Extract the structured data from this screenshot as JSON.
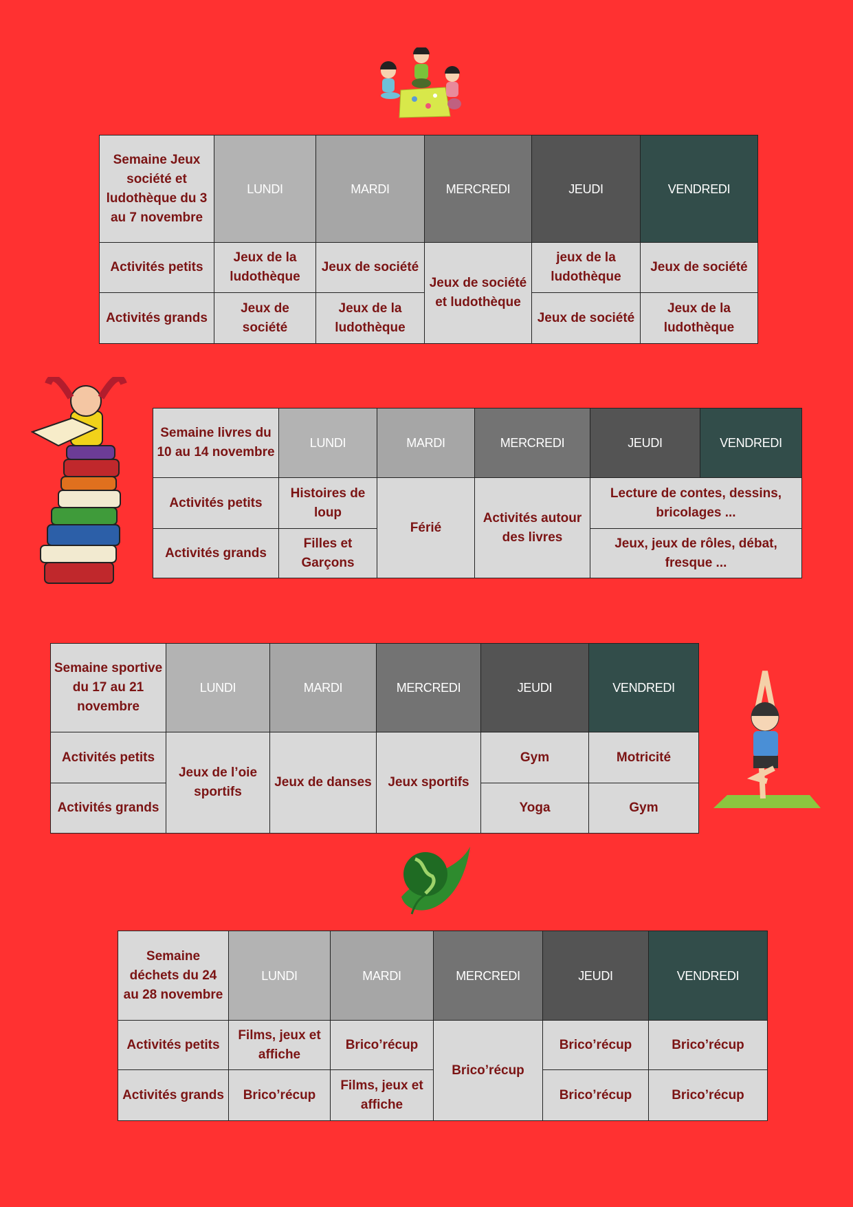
{
  "colors": {
    "background": "#ff3131",
    "cell": "#d9d9d9",
    "text": "#7b1414",
    "day_headers": [
      "#b3b3b3",
      "#a6a6a6",
      "#737373",
      "#545454",
      "#324d4a"
    ]
  },
  "days": [
    "LUNDI",
    "MARDI",
    "MERCREDI",
    "JEUDI",
    "VENDREDI"
  ],
  "tables": [
    {
      "title": "Semaine Jeux société et ludothèque du 3 au 7 novembre",
      "rows": [
        {
          "label": "Activités petits",
          "cells": [
            {
              "text": "Jeux de la ludothèque"
            },
            {
              "text": "Jeux de société"
            },
            {
              "text": "Jeux de société et ludothèque",
              "rowspan": 2
            },
            {
              "text": "jeux de la ludothèque"
            },
            {
              "text": "Jeux de société"
            }
          ]
        },
        {
          "label": "Activités grands",
          "cells": [
            {
              "text": "Jeux de société"
            },
            {
              "text": "Jeux de la ludothèque"
            },
            {
              "text": "Jeux de société"
            },
            {
              "text": "Jeux de la ludothèque"
            }
          ]
        }
      ]
    },
    {
      "title": "Semaine livres du 10 au 14 novembre",
      "rows": [
        {
          "label": "Activités petits",
          "cells": [
            {
              "text": "Histoires de loup"
            },
            {
              "text": "Férié",
              "rowspan": 2
            },
            {
              "text": "Activités autour des livres",
              "rowspan": 2
            },
            {
              "text": "Lecture de contes, dessins, bricolages ...",
              "colspan": 2
            }
          ]
        },
        {
          "label": "Activités grands",
          "cells": [
            {
              "text": "Filles et Garçons"
            },
            {
              "text": "Jeux, jeux de rôles, débat, fresque ...",
              "colspan": 2
            }
          ]
        }
      ]
    },
    {
      "title": "Semaine sportive du 17 au 21 novembre",
      "rows": [
        {
          "label": "Activités petits",
          "cells": [
            {
              "text": "Jeux de l’oie sportifs",
              "rowspan": 2
            },
            {
              "text": "Jeux de danses",
              "rowspan": 2
            },
            {
              "text": "Jeux sportifs",
              "rowspan": 2
            },
            {
              "text": "Gym"
            },
            {
              "text": "Motricité"
            }
          ]
        },
        {
          "label": "Activités grands",
          "cells": [
            {
              "text": "Yoga"
            },
            {
              "text": "Gym"
            }
          ]
        }
      ]
    },
    {
      "title": "Semaine déchets du 24 au 28 novembre",
      "rows": [
        {
          "label": "Activités petits",
          "cells": [
            {
              "text": "Films, jeux et affiche"
            },
            {
              "text": "Brico’récup"
            },
            {
              "text": "Brico’récup",
              "rowspan": 2
            },
            {
              "text": "Brico’récup"
            },
            {
              "text": "Brico’récup"
            }
          ]
        },
        {
          "label": "Activités grands",
          "cells": [
            {
              "text": "Brico’récup"
            },
            {
              "text": "Films, jeux et affiche"
            },
            {
              "text": "Brico’récup"
            },
            {
              "text": "Brico’récup"
            }
          ]
        }
      ]
    }
  ],
  "illustrations": [
    "children-board-game-illustration",
    "girl-reading-on-books-illustration",
    "boy-yoga-illustration",
    "earth-leaf-illustration"
  ]
}
